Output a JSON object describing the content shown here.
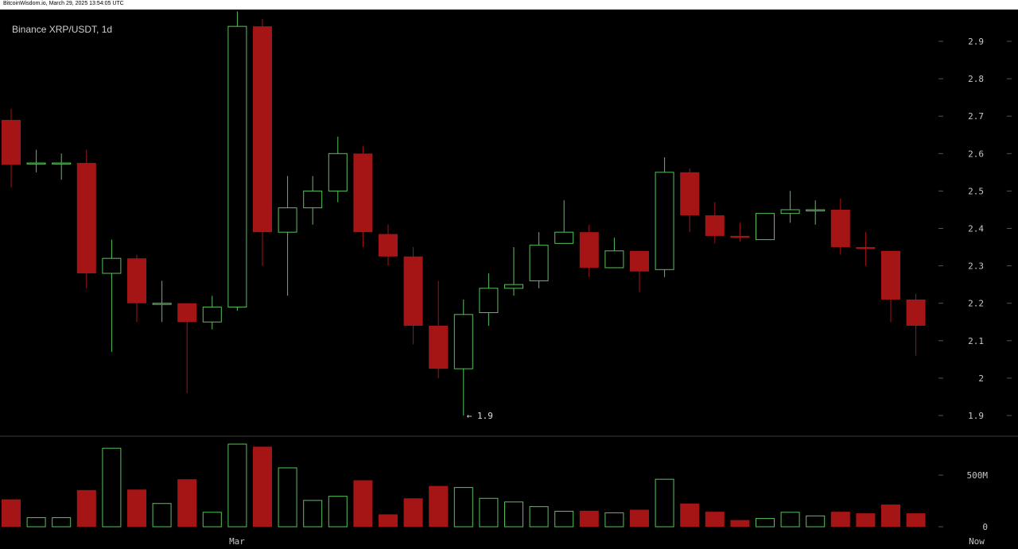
{
  "header": {
    "source_line": "BitcoinWisdom.io, March 29, 2025 13:54:05 UTC"
  },
  "chart_title": "Binance XRP/USDT, 1d",
  "colors": {
    "up": "#57c15a",
    "down": "#a61515",
    "background": "#000000",
    "text": "#c8c8c8"
  },
  "chart_data": [
    {
      "type": "candlestick",
      "title": "Binance XRP/USDT, 1d",
      "y_ticks": [
        "2.9",
        "2.8",
        "2.7",
        "2.6",
        "2.5",
        "2.4",
        "2.3",
        "2.2",
        "2.1",
        "2",
        "1.9"
      ],
      "ylim": [
        1.9,
        2.98
      ],
      "x_labels": [
        "Mar",
        "Now"
      ],
      "annotation": "← 1.9",
      "candles": [
        {
          "o": 2.69,
          "h": 2.72,
          "l": 2.51,
          "c": 2.57
        },
        {
          "o": 2.575,
          "h": 2.61,
          "l": 2.55,
          "c": 2.575
        },
        {
          "o": 2.575,
          "h": 2.6,
          "l": 2.53,
          "c": 2.575
        },
        {
          "o": 2.575,
          "h": 2.61,
          "l": 2.24,
          "c": 2.28
        },
        {
          "o": 2.28,
          "h": 2.37,
          "l": 2.07,
          "c": 2.32
        },
        {
          "o": 2.32,
          "h": 2.33,
          "l": 2.15,
          "c": 2.2
        },
        {
          "o": 2.2,
          "h": 2.26,
          "l": 2.15,
          "c": 2.2
        },
        {
          "o": 2.2,
          "h": 2.2,
          "l": 1.96,
          "c": 2.15
        },
        {
          "o": 2.15,
          "h": 2.22,
          "l": 2.13,
          "c": 2.19
        },
        {
          "o": 2.19,
          "h": 2.98,
          "l": 2.18,
          "c": 2.94
        },
        {
          "o": 2.94,
          "h": 2.96,
          "l": 2.3,
          "c": 2.39
        },
        {
          "o": 2.39,
          "h": 2.54,
          "l": 2.22,
          "c": 2.455
        },
        {
          "o": 2.455,
          "h": 2.54,
          "l": 2.41,
          "c": 2.5
        },
        {
          "o": 2.5,
          "h": 2.645,
          "l": 2.47,
          "c": 2.6
        },
        {
          "o": 2.6,
          "h": 2.62,
          "l": 2.35,
          "c": 2.39
        },
        {
          "o": 2.385,
          "h": 2.41,
          "l": 2.3,
          "c": 2.325
        },
        {
          "o": 2.325,
          "h": 2.35,
          "l": 2.09,
          "c": 2.14
        },
        {
          "o": 2.14,
          "h": 2.26,
          "l": 2.0,
          "c": 2.025
        },
        {
          "o": 2.025,
          "h": 2.21,
          "l": 1.9,
          "c": 2.17
        },
        {
          "o": 2.175,
          "h": 2.28,
          "l": 2.14,
          "c": 2.24
        },
        {
          "o": 2.24,
          "h": 2.35,
          "l": 2.22,
          "c": 2.25
        },
        {
          "o": 2.26,
          "h": 2.39,
          "l": 2.24,
          "c": 2.355
        },
        {
          "o": 2.36,
          "h": 2.475,
          "l": 2.36,
          "c": 2.39
        },
        {
          "o": 2.39,
          "h": 2.41,
          "l": 2.27,
          "c": 2.295
        },
        {
          "o": 2.295,
          "h": 2.375,
          "l": 2.295,
          "c": 2.34
        },
        {
          "o": 2.34,
          "h": 2.34,
          "l": 2.23,
          "c": 2.285
        },
        {
          "o": 2.29,
          "h": 2.59,
          "l": 2.27,
          "c": 2.55
        },
        {
          "o": 2.55,
          "h": 2.56,
          "l": 2.39,
          "c": 2.435
        },
        {
          "o": 2.435,
          "h": 2.47,
          "l": 2.36,
          "c": 2.38
        },
        {
          "o": 2.38,
          "h": 2.415,
          "l": 2.365,
          "c": 2.375
        },
        {
          "o": 2.37,
          "h": 2.44,
          "l": 2.37,
          "c": 2.44
        },
        {
          "o": 2.44,
          "h": 2.5,
          "l": 2.415,
          "c": 2.45
        },
        {
          "o": 2.45,
          "h": 2.475,
          "l": 2.41,
          "c": 2.45
        },
        {
          "o": 2.45,
          "h": 2.48,
          "l": 2.33,
          "c": 2.35
        },
        {
          "o": 2.35,
          "h": 2.39,
          "l": 2.3,
          "c": 2.345
        },
        {
          "o": 2.34,
          "h": 2.34,
          "l": 2.15,
          "c": 2.21
        },
        {
          "o": 2.21,
          "h": 2.225,
          "l": 2.06,
          "c": 2.14
        }
      ],
      "volume": {
        "y_ticks": [
          "500M",
          "0"
        ],
        "max_tick_value": 500,
        "unit": "M",
        "values": [
          265,
          88,
          88,
          355,
          760,
          360,
          225,
          460,
          140,
          800,
          775,
          570,
          255,
          295,
          450,
          120,
          275,
          395,
          380,
          275,
          240,
          195,
          150,
          155,
          135,
          165,
          460,
          225,
          145,
          65,
          80,
          140,
          105,
          145,
          130,
          215,
          130
        ]
      }
    }
  ]
}
